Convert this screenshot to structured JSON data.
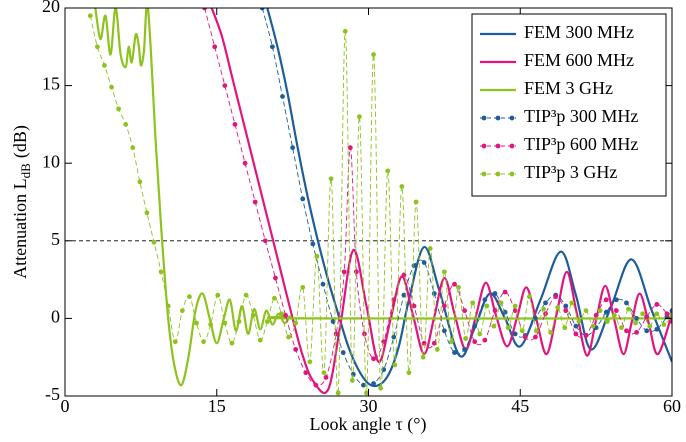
{
  "chart_data": {
    "type": "line",
    "xlabel": "Look angle τ (°)",
    "ylabel": {
      "text": "Attenuation L",
      "subscript": "dB",
      "suffix": "(dB)"
    },
    "xlim": [
      0,
      60
    ],
    "xticks": [
      0,
      15,
      30,
      45,
      60
    ],
    "ylim": [
      -5,
      20
    ],
    "yticks": [
      -5,
      0,
      5,
      10,
      15,
      20
    ],
    "hline": 5,
    "legend": "upper right",
    "series": [
      {
        "name": "FEM 300 MHz",
        "color": "#1f5c99",
        "linestyle": "solid",
        "markers": false,
        "x": [
          20,
          21,
          22,
          23,
          24,
          25,
          26,
          27,
          28,
          29,
          30,
          31,
          32,
          33,
          34,
          35.5,
          37,
          39,
          40.5,
          42,
          43.5,
          45,
          47,
          49,
          50.5,
          52,
          54,
          56,
          58,
          60
        ],
        "values": [
          20,
          17.5,
          14.5,
          11,
          7.8,
          5,
          2.5,
          0.3,
          -1.8,
          -3.3,
          -4.2,
          -4.3,
          -3.6,
          -1.8,
          1.2,
          4.6,
          1.8,
          -2.4,
          -0.6,
          1.6,
          0,
          -1.8,
          1.2,
          4.3,
          1.5,
          -2,
          0.8,
          3.8,
          0.5,
          -2.8
        ]
      },
      {
        "name": "FEM 600 MHz",
        "color": "#e0157f",
        "linestyle": "solid",
        "markers": false,
        "x": [
          14.5,
          15.5,
          16.5,
          17.5,
          18.5,
          19.5,
          20.5,
          21.5,
          22.5,
          23.5,
          24.5,
          26,
          27.2,
          28.5,
          29.8,
          31,
          32.2,
          33.3,
          34.4,
          35.5,
          36.5,
          37.5,
          38.5,
          39.6,
          40.6,
          41.6,
          42.6,
          43.7,
          44.7,
          45.6,
          46.6,
          47.6,
          48.6,
          49.6,
          50.6,
          51.6,
          52.5,
          53.4,
          54.3,
          55.2,
          56,
          56.8,
          57.7,
          58.6,
          60
        ],
        "values": [
          20,
          18.2,
          15.6,
          13,
          10.4,
          7.8,
          5.2,
          2.6,
          0,
          -2.4,
          -4,
          -4.6,
          -0.5,
          4.4,
          0.8,
          -2.8,
          0,
          2.7,
          0.2,
          -2.3,
          0.1,
          2.6,
          0.3,
          -2,
          0.1,
          2.3,
          0.2,
          -1.8,
          0.1,
          2,
          -0.1,
          -2.3,
          0.3,
          3,
          0.3,
          -2.4,
          -0.1,
          2.1,
          -0.1,
          -2.3,
          -0.3,
          1.6,
          -0.3,
          -2.3,
          0.3
        ]
      },
      {
        "name": "FEM 3 GHz",
        "color": "#8dc21f",
        "linestyle": "solid",
        "markers": false,
        "x": [
          3,
          3.5,
          4,
          4.5,
          5,
          5.5,
          6,
          6.3,
          6.6,
          7,
          7.3,
          7.5,
          7.8,
          8.2,
          9,
          9.6,
          10.2,
          10.8,
          11.5,
          12.2,
          12.9,
          13.6,
          14.3,
          15,
          15.7,
          16.3,
          16.9,
          17.5,
          18.1,
          18.7,
          19.3,
          19.9,
          20.5,
          21.1,
          21.7,
          22.3,
          23,
          60
        ],
        "values": [
          20,
          18,
          19.5,
          17,
          20,
          17,
          16.2,
          17.5,
          16.5,
          18.3,
          17.5,
          16.3,
          17.2,
          20,
          11,
          5,
          0,
          -3,
          -4.3,
          -2.5,
          0.5,
          1.6,
          0,
          -1.6,
          0,
          1.2,
          -0.8,
          0.8,
          -1,
          0.6,
          -0.7,
          0.5,
          -0.4,
          0.3,
          -0.3,
          0.1,
          0,
          0
        ]
      },
      {
        "name": "TIP³p 300 MHz",
        "color": "#1f5c99",
        "linestyle": "dashed",
        "markers": true,
        "x": [
          19.5,
          20.5,
          21.5,
          22.5,
          23.5,
          24.5,
          25.5,
          26.5,
          27.5,
          28.5,
          29.5,
          30.5,
          31.5,
          32.5,
          33.5,
          34.5,
          35.5,
          36.5,
          37.5,
          38.5,
          39.5,
          40.5,
          41.5,
          42.5,
          43.5,
          44.5,
          45.5,
          46.5,
          47.5,
          48.5,
          49.5,
          50.5,
          51.5,
          52.5,
          53.5,
          54.5,
          55.5,
          56.5,
          57.5,
          58.5,
          59.5,
          60
        ],
        "values": [
          20,
          17.5,
          14.3,
          11,
          7.7,
          4.8,
          2.2,
          -0.2,
          -2.2,
          -3.6,
          -4.3,
          -4.2,
          -3.3,
          -1.2,
          1.5,
          3.4,
          3.6,
          1.6,
          -0.8,
          -2.2,
          -2,
          -0.5,
          1.2,
          1.6,
          0.4,
          -1,
          -1.1,
          0,
          1,
          1.5,
          0.8,
          -0.5,
          -1.1,
          -0.6,
          0.4,
          1.2,
          1,
          0,
          -0.8,
          -0.7,
          0.1,
          0.5
        ]
      },
      {
        "name": "TIP³p 600 MHz",
        "color": "#e0157f",
        "linestyle": "dashed",
        "markers": true,
        "x": [
          13.8,
          14.8,
          15.8,
          16.8,
          17.8,
          18.8,
          19.8,
          20.8,
          21.8,
          22.8,
          23.8,
          24.8,
          25.8,
          26.8,
          27.6,
          28.2,
          28.8,
          29.6,
          30.5,
          31.5,
          32.5,
          33.5,
          34.5,
          35.5,
          36.5,
          37.5,
          38.5,
          39.5,
          40.5,
          41.5,
          42.5,
          43.5,
          44.5,
          45.5,
          46.5,
          47.5,
          48.5,
          49.5,
          50.5,
          51.5,
          52.5,
          53.5,
          54.5,
          55.5,
          56.5,
          57.5,
          58.5,
          59.5,
          60
        ],
        "values": [
          20,
          17.5,
          15,
          12.5,
          10,
          7.5,
          5,
          2.6,
          0.2,
          -2,
          -3.5,
          -4.3,
          -3.8,
          -1,
          3,
          11,
          3,
          -1,
          -2.6,
          -1.5,
          1.2,
          2.8,
          0.8,
          -1.6,
          -1.6,
          0.8,
          2.2,
          0.5,
          -1.5,
          -1.4,
          0.5,
          1.7,
          0.5,
          -1.2,
          -1.2,
          0.3,
          1.4,
          0.5,
          -1,
          -1.1,
          0.2,
          1.2,
          0.5,
          -0.8,
          -0.9,
          0.1,
          0.9,
          0.3,
          -0.2
        ]
      },
      {
        "name": "TIP³p 3 GHz",
        "color": "#8dc21f",
        "linestyle": "dashed",
        "markers": true,
        "x": [
          2.5,
          3.2,
          3.9,
          4.6,
          5.3,
          6,
          6.7,
          7.4,
          8.1,
          8.8,
          9.5,
          10.2,
          10.9,
          11.6,
          12.3,
          13,
          13.7,
          14.4,
          15.1,
          15.8,
          16.5,
          17.2,
          17.9,
          18.6,
          19.3,
          20,
          20.7,
          21.4,
          22.1,
          22.8,
          23.5,
          24.2,
          24.9,
          25.6,
          26.3,
          27,
          27.7,
          28.4,
          29.1,
          29.8,
          30.5,
          31.2,
          31.9,
          32.6,
          33.3,
          34,
          34.7,
          35.4,
          36.1,
          36.8,
          37.5,
          38.2,
          38.9,
          39.6,
          40.3,
          41,
          41.7,
          42.4,
          43.1,
          43.8,
          44.5,
          45.2,
          45.9,
          46.6,
          47.3,
          48,
          48.7,
          49.4,
          50.1,
          50.8,
          51.5,
          52.2,
          52.9,
          53.6,
          54.3,
          55,
          55.7,
          56.4,
          57.1,
          57.8,
          58.5,
          59.2,
          60
        ],
        "values": [
          19.5,
          17.5,
          16.3,
          14.9,
          13.5,
          12.5,
          11,
          8.8,
          6.8,
          4.9,
          3,
          0.8,
          -1.5,
          0.5,
          1.4,
          -0.3,
          -1.5,
          -0.4,
          1.5,
          -0.3,
          -1.6,
          -0.2,
          1.5,
          0.2,
          -1.4,
          -0.2,
          1.3,
          0.3,
          -1.2,
          -0.3,
          2,
          -2.8,
          4,
          -3.5,
          9,
          -4.8,
          18.5,
          -4,
          13,
          -4.8,
          17,
          -4.5,
          9.5,
          -3,
          8.5,
          -3.5,
          7.5,
          -2.5,
          4.5,
          -2,
          3,
          -1.5,
          2,
          -1.3,
          1,
          -1,
          0.8,
          -0.5,
          1,
          -0.6,
          0.8,
          -0.8,
          1.4,
          -0.8,
          0.6,
          -0.9,
          0.7,
          -0.6,
          1,
          -0.2,
          0.5,
          -0.5,
          0.5,
          -0.2,
          0.2,
          -0.6,
          0.6,
          -0.3,
          0.3,
          -0.5,
          0.3,
          -0.4,
          0.2
        ]
      }
    ]
  }
}
